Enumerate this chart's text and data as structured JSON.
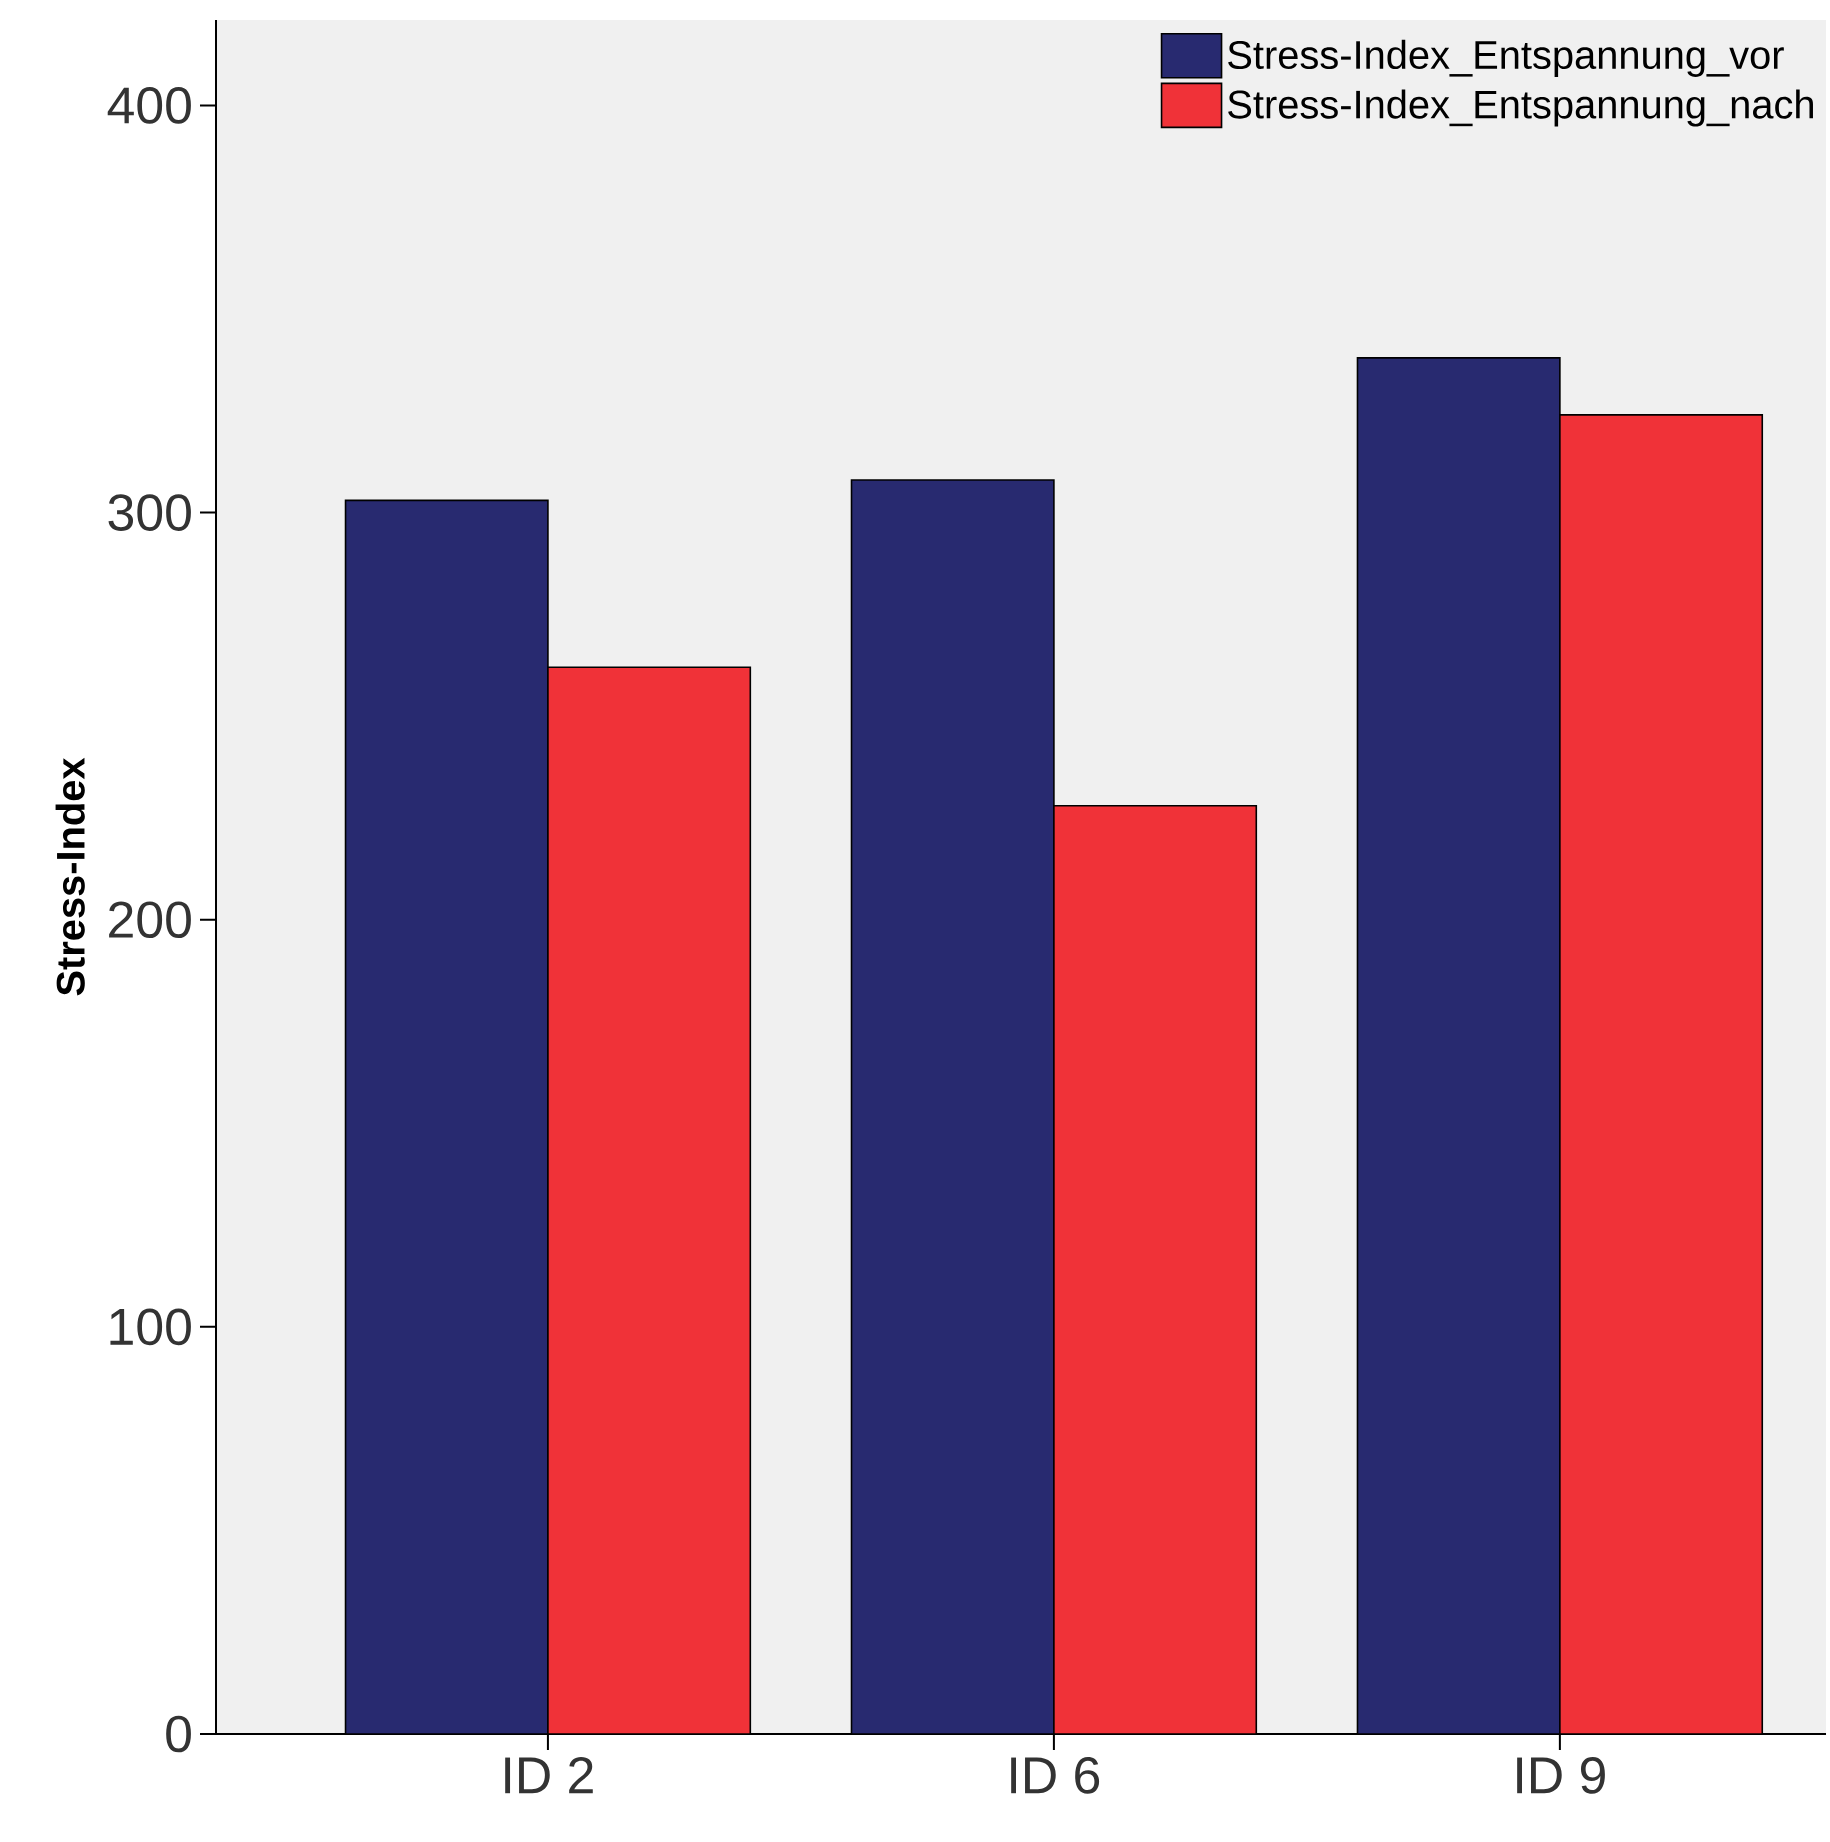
{
  "chart_data": {
    "type": "bar",
    "ylabel": "Stress-Index",
    "categories": [
      "ID 2",
      "ID 6",
      "ID 9"
    ],
    "series": [
      {
        "name": "Stress-Index_Entspannung_vor",
        "color": "#282a70",
        "values": [
          303,
          308,
          338
        ]
      },
      {
        "name": "Stress-Index_Entspannung_nach",
        "color": "#f03238",
        "values": [
          262,
          228,
          324
        ]
      }
    ],
    "ylim": [
      0,
      421
    ],
    "yticks": [
      0,
      100,
      200,
      300,
      400
    ],
    "grid": false,
    "legend": "top right"
  }
}
